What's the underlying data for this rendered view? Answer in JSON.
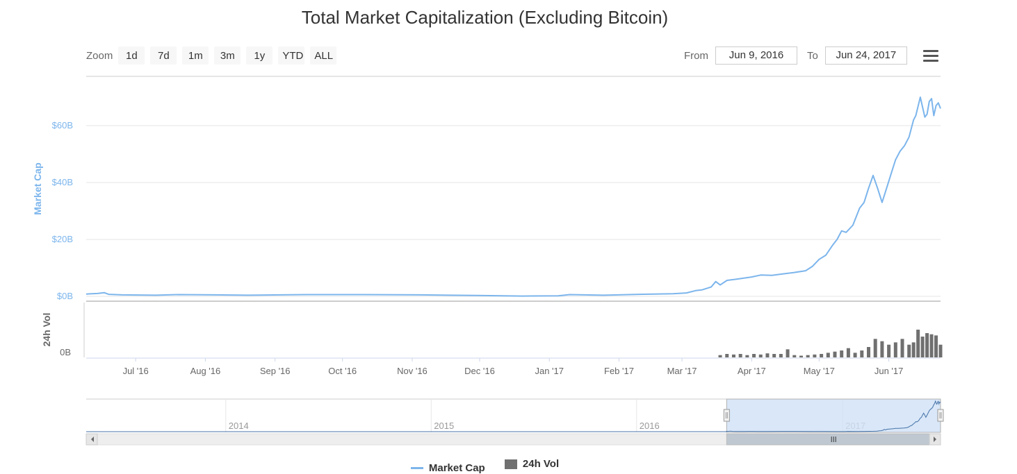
{
  "title": "Total Market Capitalization (Excluding Bitcoin)",
  "zoom": {
    "label": "Zoom",
    "buttons": [
      "1d",
      "7d",
      "1m",
      "3m",
      "1y",
      "YTD",
      "ALL"
    ]
  },
  "range": {
    "from_label": "From",
    "from_value": "Jun 9, 2016",
    "to_label": "To",
    "to_value": "Jun 24, 2017"
  },
  "menu_icon": "hamburger-menu-icon",
  "colors": {
    "market_cap": "#7cb5ec",
    "volume": "#707070",
    "navigator_fill": "#cfe1f6",
    "grid": "#e6e6e6"
  },
  "chart_data": {
    "type": "line",
    "x_range": [
      "2016-06-09",
      "2017-06-24"
    ],
    "x_ticks": [
      "Jul '16",
      "Aug '16",
      "Sep '16",
      "Oct '16",
      "Nov '16",
      "Dec '16",
      "Jan '17",
      "Feb '17",
      "Mar '17",
      "Apr '17",
      "May '17",
      "Jun '17"
    ],
    "x_tick_dates": [
      "2016-07-01",
      "2016-08-01",
      "2016-09-01",
      "2016-10-01",
      "2016-11-01",
      "2016-12-01",
      "2017-01-01",
      "2017-02-01",
      "2017-03-01",
      "2017-04-01",
      "2017-05-01",
      "2017-06-01"
    ],
    "series": [
      {
        "name": "Market Cap",
        "axis": {
          "label": "Market Cap",
          "ticks": [
            "$0B",
            "$20B",
            "$40B",
            "$60B"
          ],
          "tick_values": [
            0,
            20,
            40,
            60
          ],
          "ylim": [
            0,
            70
          ]
        },
        "x": [
          "2016-06-09",
          "2016-06-14",
          "2016-06-17",
          "2016-06-19",
          "2016-06-25",
          "2016-07-10",
          "2016-07-20",
          "2016-08-05",
          "2016-08-20",
          "2016-09-15",
          "2016-10-10",
          "2016-11-05",
          "2016-11-30",
          "2016-12-20",
          "2017-01-05",
          "2017-01-10",
          "2017-01-25",
          "2017-02-10",
          "2017-02-25",
          "2017-03-03",
          "2017-03-07",
          "2017-03-10",
          "2017-03-14",
          "2017-03-16",
          "2017-03-18",
          "2017-03-21",
          "2017-03-25",
          "2017-04-01",
          "2017-04-05",
          "2017-04-10",
          "2017-04-15",
          "2017-04-20",
          "2017-04-25",
          "2017-04-28",
          "2017-05-01",
          "2017-05-04",
          "2017-05-07",
          "2017-05-09",
          "2017-05-11",
          "2017-05-13",
          "2017-05-16",
          "2017-05-19",
          "2017-05-21",
          "2017-05-23",
          "2017-05-25",
          "2017-05-27",
          "2017-05-29",
          "2017-05-31",
          "2017-06-02",
          "2017-06-04",
          "2017-06-06",
          "2017-06-08",
          "2017-06-10",
          "2017-06-12",
          "2017-06-13",
          "2017-06-15",
          "2017-06-17",
          "2017-06-18",
          "2017-06-19",
          "2017-06-20",
          "2017-06-21",
          "2017-06-22",
          "2017-06-23",
          "2017-06-24"
        ],
        "y": [
          0.8,
          1.0,
          1.3,
          0.7,
          0.5,
          0.4,
          0.6,
          0.5,
          0.4,
          0.6,
          0.6,
          0.5,
          0.3,
          0.1,
          0.2,
          0.6,
          0.4,
          0.7,
          0.9,
          1.2,
          2.0,
          2.3,
          3.3,
          5.2,
          4.0,
          5.6,
          6.0,
          6.8,
          7.5,
          7.4,
          7.9,
          8.4,
          9.0,
          10.5,
          13.0,
          14.5,
          18.0,
          20.0,
          23.0,
          22.5,
          25.0,
          31.0,
          33.0,
          38.0,
          42.5,
          38.0,
          33.0,
          38.0,
          43.0,
          48.0,
          51.0,
          53.0,
          56.0,
          62.0,
          63.5,
          70.0,
          63.0,
          64.0,
          68.5,
          69.5,
          63.5,
          67.0,
          68.0,
          66.0
        ]
      },
      {
        "name": "24h Vol",
        "type": "bar",
        "axis": {
          "label": "24h Vol",
          "ticks": [
            "0B"
          ],
          "tick_values": [
            0
          ],
          "ylim": [
            0,
            4.5
          ]
        },
        "x": [
          "2017-03-18",
          "2017-03-21",
          "2017-03-24",
          "2017-03-27",
          "2017-03-30",
          "2017-04-02",
          "2017-04-05",
          "2017-04-08",
          "2017-04-11",
          "2017-04-14",
          "2017-04-17",
          "2017-04-20",
          "2017-04-23",
          "2017-04-26",
          "2017-04-29",
          "2017-05-02",
          "2017-05-05",
          "2017-05-08",
          "2017-05-11",
          "2017-05-14",
          "2017-05-17",
          "2017-05-20",
          "2017-05-23",
          "2017-05-26",
          "2017-05-29",
          "2017-06-01",
          "2017-06-04",
          "2017-06-07",
          "2017-06-10",
          "2017-06-12",
          "2017-06-14",
          "2017-06-16",
          "2017-06-18",
          "2017-06-20",
          "2017-06-22",
          "2017-06-24"
        ],
        "y": [
          0.2,
          0.3,
          0.25,
          0.3,
          0.2,
          0.3,
          0.25,
          0.35,
          0.3,
          0.3,
          0.7,
          0.2,
          0.15,
          0.2,
          0.25,
          0.3,
          0.4,
          0.5,
          0.6,
          0.8,
          0.4,
          0.6,
          0.9,
          1.6,
          1.4,
          1.1,
          1.3,
          1.6,
          1.1,
          1.3,
          2.4,
          1.8,
          2.1,
          2.0,
          1.9,
          1.1
        ]
      }
    ],
    "navigator": {
      "labels": [
        "2014",
        "2015",
        "2016",
        "2017"
      ],
      "selected_range": [
        "2016-06-09",
        "2017-06-24"
      ]
    },
    "legend": [
      "Market Cap",
      "24h Vol"
    ],
    "legend_position": "bottom-center",
    "grid": true
  }
}
